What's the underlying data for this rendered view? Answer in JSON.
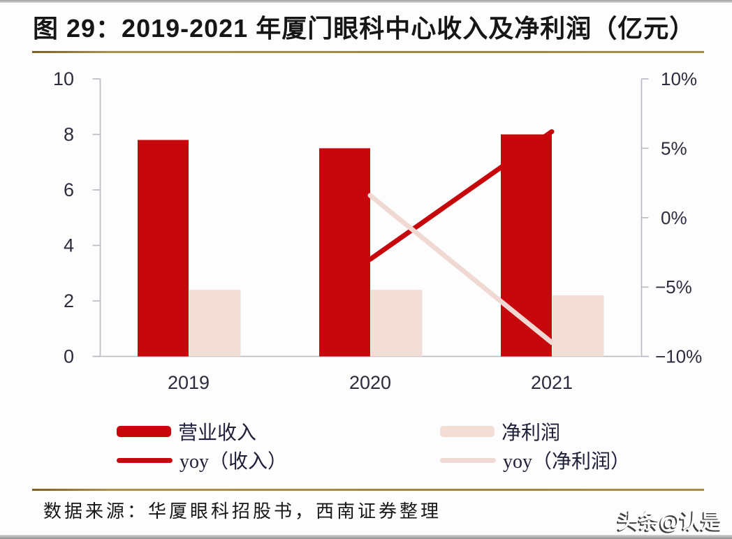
{
  "figure": {
    "title": "图 29：2019-2021 年厦门眼科中心收入及净利润（亿元）",
    "source": "数据来源：华厦眼科招股书，西南证券整理",
    "watermark": "头条@认是"
  },
  "colors": {
    "revenue_red": "#c6070c",
    "net_profit_pink": "#f3ddd7",
    "yoy_revenue_red": "#c6070c",
    "yoy_net_profit_pink": "#f1d9d3",
    "gold_rule": "#a5853e",
    "axis_line": "#b9b9c2",
    "tick_text": "#2c2c3e",
    "title_text": "#161616"
  },
  "chart_data": {
    "type": "combo-bar-line",
    "categories": [
      "2019",
      "2020",
      "2021"
    ],
    "bar_series": [
      {
        "name": "营业收入",
        "axis": "left",
        "values": [
          7.8,
          7.5,
          8.0
        ],
        "color": "#c6070c"
      },
      {
        "name": "净利润",
        "axis": "left",
        "values": [
          2.4,
          2.4,
          2.2
        ],
        "color": "#f3ddd7"
      }
    ],
    "line_series": [
      {
        "name": "yoy（收入）",
        "axis": "right",
        "values": [
          null,
          -3.0,
          6.2
        ],
        "color": "#c6070c"
      },
      {
        "name": "yoy（净利润）",
        "axis": "right",
        "values": [
          null,
          1.6,
          -9.0
        ],
        "color": "#f1d9d3"
      }
    ],
    "left_axis": {
      "range": [
        0,
        10
      ],
      "ticks": [
        0,
        2,
        4,
        6,
        8,
        10
      ]
    },
    "right_axis": {
      "range": [
        -10,
        10
      ],
      "unit": "%",
      "tick_labels": [
        "10%",
        "5%",
        "0%",
        "−5%",
        "−10%"
      ]
    },
    "grid": false,
    "legend_position": "bottom"
  }
}
